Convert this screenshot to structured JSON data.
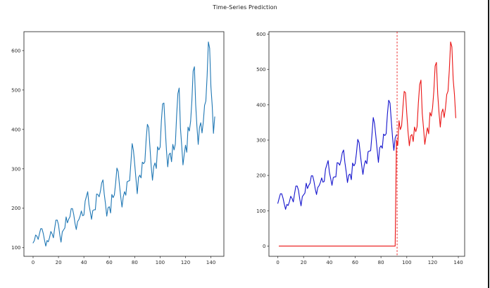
{
  "title": "Time-Series Prediction",
  "colors": {
    "background": "#ffffff",
    "spine": "#333333",
    "tick_label": "#2b2b2b",
    "window_border": "#161616",
    "observed": "#1f77b4",
    "train_actual": "#1414cd",
    "prediction": "#ea1414"
  },
  "chart_data": [
    {
      "type": "line",
      "name": "observed-series",
      "title": "",
      "xlabel": "",
      "ylabel": "",
      "grid": false,
      "legend_position": "none",
      "xlim": [
        -7.2,
        150.2
      ],
      "ylim": [
        78,
        648
      ],
      "xticks": [
        0,
        20,
        40,
        60,
        80,
        100,
        120,
        140
      ],
      "yticks": [
        100,
        200,
        300,
        400,
        500,
        600
      ],
      "series": [
        {
          "name": "airline-passengers-observed",
          "color": "#1f77b4",
          "x_start": 0,
          "leading_zeros": 0,
          "values": [
            112,
            118,
            132,
            129,
            121,
            135,
            148,
            148,
            136,
            119,
            104,
            118,
            115,
            126,
            141,
            135,
            125,
            149,
            170,
            170,
            158,
            133,
            114,
            140,
            145,
            150,
            178,
            163,
            172,
            178,
            199,
            199,
            184,
            162,
            146,
            166,
            171,
            180,
            193,
            181,
            183,
            218,
            230,
            242,
            209,
            191,
            172,
            194,
            196,
            196,
            236,
            235,
            229,
            243,
            264,
            272,
            237,
            211,
            180,
            201,
            204,
            188,
            235,
            227,
            234,
            264,
            302,
            293,
            259,
            229,
            203,
            229,
            242,
            233,
            267,
            269,
            270,
            315,
            364,
            347,
            312,
            274,
            237,
            278,
            284,
            277,
            317,
            313,
            318,
            374,
            413,
            405,
            355,
            306,
            271,
            306,
            315,
            301,
            356,
            348,
            355,
            422,
            465,
            467,
            404,
            347,
            305,
            336,
            340,
            318,
            362,
            348,
            363,
            435,
            491,
            505,
            404,
            359,
            310,
            337,
            360,
            342,
            406,
            396,
            420,
            472,
            548,
            559,
            463,
            407,
            362,
            405,
            417,
            391,
            419,
            461,
            472,
            535,
            622,
            606,
            508,
            461,
            390,
            432
          ]
        }
      ]
    },
    {
      "type": "line",
      "name": "prediction-vs-actual",
      "title": "",
      "xlabel": "",
      "ylabel": "",
      "grid": false,
      "legend_position": "none",
      "xlim": [
        -6.9,
        144.9
      ],
      "ylim": [
        -29,
        607
      ],
      "xticks": [
        0,
        20,
        40,
        60,
        80,
        100,
        120,
        140
      ],
      "yticks": [
        0,
        100,
        200,
        300,
        400,
        500,
        600
      ],
      "vlines": [
        {
          "x": 92.5,
          "style": "dashed",
          "color": "#ea1414"
        }
      ],
      "series": [
        {
          "name": "actual-train-segment",
          "color": "#1414cd",
          "x_start": 0,
          "leading_zeros": 0,
          "values": [
            121,
            135,
            148,
            148,
            136,
            119,
            104,
            118,
            115,
            126,
            141,
            135,
            125,
            149,
            170,
            170,
            158,
            133,
            114,
            140,
            145,
            150,
            178,
            163,
            172,
            178,
            199,
            199,
            184,
            162,
            146,
            166,
            171,
            180,
            193,
            181,
            183,
            218,
            230,
            242,
            209,
            191,
            172,
            194,
            196,
            196,
            236,
            235,
            229,
            243,
            264,
            272,
            237,
            211,
            180,
            201,
            204,
            188,
            235,
            227,
            234,
            264,
            302,
            293,
            259,
            229,
            203,
            229,
            242,
            233,
            267,
            269,
            270,
            315,
            364,
            347,
            312,
            274,
            237,
            278,
            284,
            277,
            317,
            313,
            318,
            374,
            413,
            405,
            355,
            306,
            271,
            306,
            315
          ]
        },
        {
          "name": "model-prediction",
          "color": "#ea1414",
          "x_start": 1,
          "leading_zeros": 91,
          "values": [
            300,
            285,
            355,
            330,
            340,
            392,
            438,
            434,
            376,
            323,
            284,
            312,
            316,
            296,
            337,
            324,
            338,
            405,
            457,
            470,
            376,
            334,
            288,
            313,
            335,
            318,
            378,
            368,
            391,
            439,
            510,
            520,
            431,
            378,
            337,
            377,
            388,
            364,
            390,
            429,
            439,
            498,
            578,
            564,
            472,
            429,
            363
          ]
        }
      ]
    }
  ]
}
